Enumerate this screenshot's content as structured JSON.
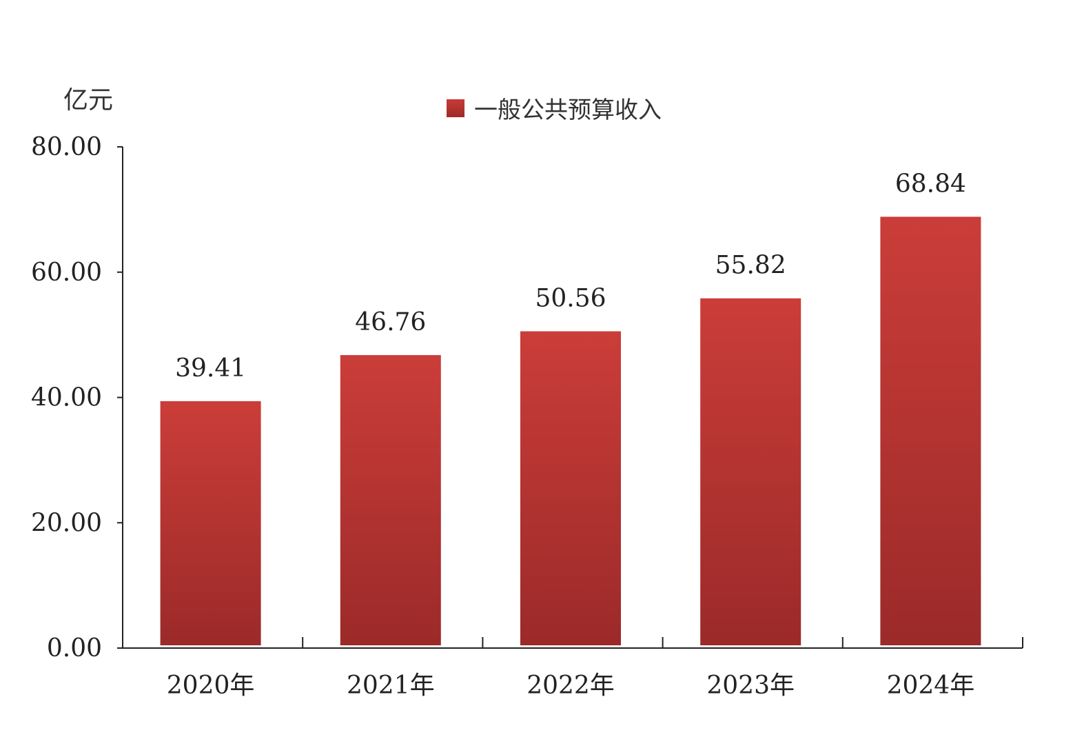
{
  "chart_data": {
    "type": "bar",
    "categories": [
      "2020年",
      "2021年",
      "2022年",
      "2023年",
      "2024年"
    ],
    "series": [
      {
        "name": "一般公共预算收入",
        "values": [
          39.41,
          46.76,
          50.56,
          55.82,
          68.84
        ],
        "color_top": "#cb3d39",
        "color_bottom": "#9b2a29"
      }
    ],
    "data_labels": [
      "39.41",
      "46.76",
      "50.56",
      "55.82",
      "68.84"
    ],
    "ylabel": "亿元",
    "ylim": [
      0,
      80
    ],
    "yticks": [
      "0.00",
      "20.00",
      "40.00",
      "60.00",
      "80.00"
    ],
    "grid": false,
    "legend_position": "top-center"
  }
}
